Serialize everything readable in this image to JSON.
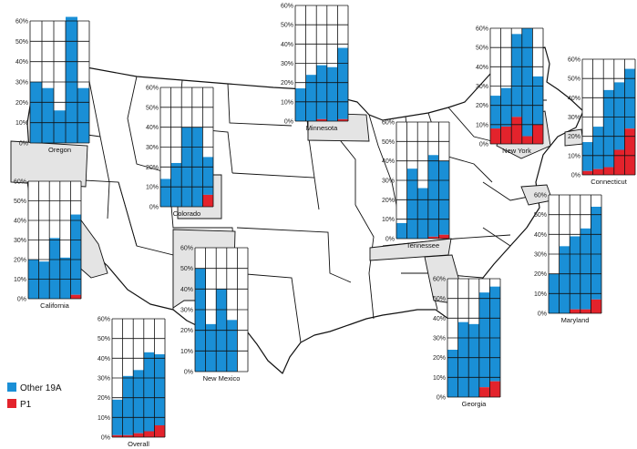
{
  "colors": {
    "other": "#1a8fd6",
    "p1": "#e3232c",
    "state_fill": "#e4e4e4",
    "map_line": "#111111"
  },
  "legend": [
    {
      "key": "other",
      "label": "Other 19A"
    },
    {
      "key": "p1",
      "label": "P1"
    }
  ],
  "chart_data": [
    {
      "type": "bar",
      "name": "Oregon",
      "ylim": [
        0,
        60
      ],
      "yticks": [
        "0%",
        "10%",
        "20%",
        "30%",
        "40%",
        "50%",
        "60%"
      ],
      "other": [
        30,
        27,
        16,
        62,
        27
      ],
      "p1": [
        0,
        0,
        0,
        0,
        0
      ]
    },
    {
      "type": "bar",
      "name": "Minnesota",
      "ylim": [
        0,
        60
      ],
      "yticks": [
        "0%",
        "10%",
        "20%",
        "30%",
        "40%",
        "50%",
        "60%"
      ],
      "other": [
        17,
        24,
        28,
        28,
        37
      ],
      "p1": [
        0,
        0,
        1,
        0,
        1
      ]
    },
    {
      "type": "bar",
      "name": "New York",
      "ylim": [
        0,
        60
      ],
      "yticks": [
        "0%",
        "10%",
        "20%",
        "30%",
        "40%",
        "50%",
        "60%"
      ],
      "other": [
        17,
        20,
        43,
        56,
        25
      ],
      "p1": [
        8,
        9,
        14,
        4,
        10
      ]
    },
    {
      "type": "bar",
      "name": "Connecticut",
      "ylim": [
        0,
        60
      ],
      "yticks": [
        "0%",
        "10%",
        "20%",
        "30%",
        "40%",
        "50%",
        "60%"
      ],
      "other": [
        15,
        22,
        40,
        35,
        31
      ],
      "p1": [
        2,
        3,
        4,
        13,
        24
      ]
    },
    {
      "type": "bar",
      "name": "Colorado",
      "ylim": [
        0,
        60
      ],
      "yticks": [
        "0%",
        "10%",
        "20%",
        "30%",
        "40%",
        "50%",
        "60%"
      ],
      "other": [
        14,
        22,
        40,
        40,
        19
      ],
      "p1": [
        0,
        0,
        0,
        0,
        6
      ]
    },
    {
      "type": "bar",
      "name": "Tennessee",
      "ylim": [
        0,
        60
      ],
      "yticks": [
        "0%",
        "10%",
        "20%",
        "30%",
        "40%",
        "50%",
        "60%"
      ],
      "other": [
        8,
        36,
        26,
        42,
        38
      ],
      "p1": [
        0,
        0,
        0,
        1,
        2
      ]
    },
    {
      "type": "bar",
      "name": "California",
      "ylim": [
        0,
        60
      ],
      "yticks": [
        "0%",
        "10%",
        "20%",
        "30%",
        "40%",
        "50%",
        "60%"
      ],
      "other": [
        20,
        19,
        31,
        21,
        41
      ],
      "p1": [
        0,
        0,
        0,
        0,
        2
      ]
    },
    {
      "type": "bar",
      "name": "New Mexico",
      "ylim": [
        0,
        60
      ],
      "yticks": [
        "0%",
        "10%",
        "20%",
        "30%",
        "40%",
        "50%",
        "60%"
      ],
      "other": [
        50,
        23,
        40,
        25,
        0
      ],
      "p1": [
        0,
        0,
        0,
        0,
        0
      ]
    },
    {
      "type": "bar",
      "name": "Maryland",
      "ylim": [
        0,
        60
      ],
      "yticks": [
        "0%",
        "10%",
        "20%",
        "30%",
        "40%",
        "50%",
        "60%"
      ],
      "other": [
        20,
        34,
        37,
        41,
        47
      ],
      "p1": [
        0,
        0,
        2,
        2,
        7
      ]
    },
    {
      "type": "bar",
      "name": "Georgia",
      "ylim": [
        0,
        60
      ],
      "yticks": [
        "0%",
        "10%",
        "20%",
        "30%",
        "40%",
        "50%",
        "60%"
      ],
      "other": [
        24,
        38,
        37,
        48,
        48
      ],
      "p1": [
        0,
        0,
        0,
        5,
        8
      ]
    },
    {
      "type": "bar",
      "name": "Overall",
      "ylim": [
        0,
        60
      ],
      "yticks": [
        "0%",
        "10%",
        "20%",
        "30%",
        "40%",
        "50%",
        "60%"
      ],
      "other": [
        18,
        30,
        32,
        40,
        36
      ],
      "p1": [
        1,
        1,
        2,
        3,
        6
      ]
    }
  ]
}
